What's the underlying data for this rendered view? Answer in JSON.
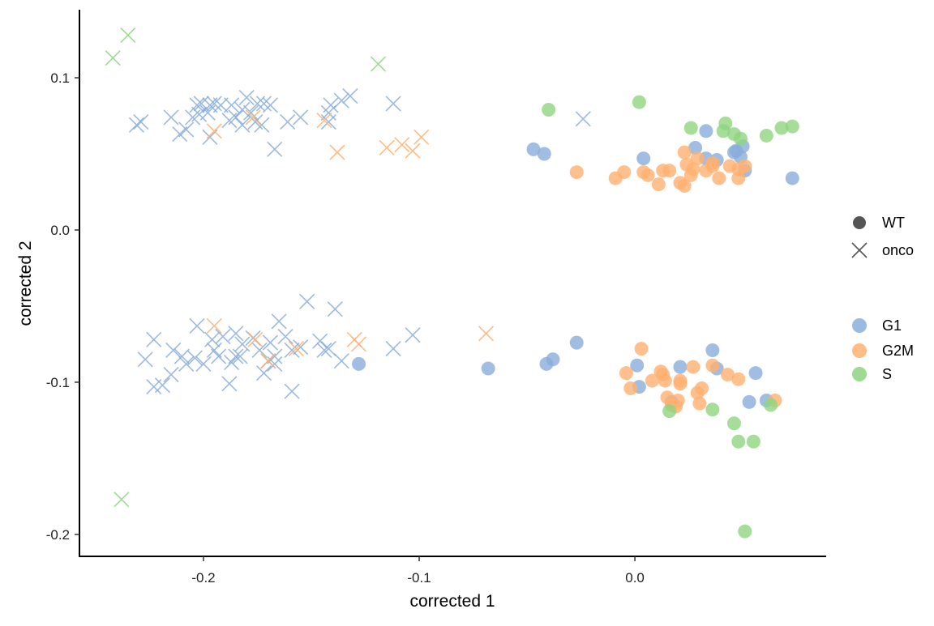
{
  "chart_data": {
    "type": "scatter",
    "xlabel": "corrected 1",
    "ylabel": "corrected 2",
    "xlim": [
      -0.2575,
      0.0883
    ],
    "ylim": [
      -0.2144,
      0.1447
    ],
    "x_ticks": [
      {
        "value": -0.2,
        "label": "-0.2"
      },
      {
        "value": -0.1,
        "label": "-0.1"
      },
      {
        "value": 0.0,
        "label": "0.0"
      }
    ],
    "y_ticks": [
      {
        "value": 0.1,
        "label": "0.1"
      },
      {
        "value": 0.0,
        "label": "0.0"
      },
      {
        "value": -0.1,
        "label": "-0.1"
      },
      {
        "value": -0.2,
        "label": "-0.2"
      }
    ],
    "grid": false,
    "legend_position": "right",
    "shape_legend": [
      {
        "name": "WT",
        "shape": "circle"
      },
      {
        "name": "onco",
        "shape": "cross"
      }
    ],
    "color_legend": [
      {
        "name": "G1",
        "color": "#8aaedb"
      },
      {
        "name": "G2M",
        "color": "#ffb070"
      },
      {
        "name": "S",
        "color": "#8ed480"
      }
    ],
    "series": [
      {
        "shape": "cross",
        "phase": "S",
        "points": [
          [
            -0.242,
            0.113
          ],
          [
            -0.235,
            0.128
          ],
          [
            -0.119,
            0.109
          ],
          [
            -0.238,
            -0.177
          ]
        ]
      },
      {
        "shape": "cross",
        "phase": "G1",
        "points": [
          [
            -0.231,
            0.069
          ],
          [
            -0.229,
            0.071
          ],
          [
            -0.215,
            0.074
          ],
          [
            -0.211,
            0.063
          ],
          [
            -0.208,
            0.066
          ],
          [
            -0.205,
            0.074
          ],
          [
            -0.203,
            0.082
          ],
          [
            -0.201,
            0.083
          ],
          [
            -0.198,
            0.077
          ],
          [
            -0.197,
            0.082
          ],
          [
            -0.195,
            0.083
          ],
          [
            -0.192,
            0.082
          ],
          [
            -0.187,
            0.082
          ],
          [
            -0.185,
            0.074
          ],
          [
            -0.182,
            0.079
          ],
          [
            -0.18,
            0.087
          ],
          [
            -0.178,
            0.077
          ],
          [
            -0.175,
            0.083
          ],
          [
            -0.172,
            0.083
          ],
          [
            -0.169,
            0.082
          ],
          [
            -0.173,
            0.069
          ],
          [
            -0.167,
            0.053
          ],
          [
            -0.161,
            0.071
          ],
          [
            -0.155,
            0.074
          ],
          [
            -0.142,
            0.077
          ],
          [
            -0.141,
            0.082
          ],
          [
            -0.136,
            0.085
          ],
          [
            -0.132,
            0.088
          ],
          [
            -0.112,
            0.083
          ],
          [
            -0.024,
            0.073
          ],
          [
            -0.197,
            0.061
          ],
          [
            -0.182,
            0.069
          ],
          [
            -0.202,
            0.076
          ],
          [
            -0.188,
            0.072
          ],
          [
            -0.176,
            0.071
          ],
          [
            -0.142,
            0.071
          ],
          [
            -0.227,
            -0.085
          ],
          [
            -0.223,
            -0.072
          ],
          [
            -0.223,
            -0.103
          ],
          [
            -0.219,
            -0.102
          ],
          [
            -0.215,
            -0.095
          ],
          [
            -0.214,
            -0.079
          ],
          [
            -0.21,
            -0.083
          ],
          [
            -0.208,
            -0.088
          ],
          [
            -0.204,
            -0.084
          ],
          [
            -0.203,
            -0.063
          ],
          [
            -0.2,
            -0.088
          ],
          [
            -0.196,
            -0.072
          ],
          [
            -0.195,
            -0.079
          ],
          [
            -0.193,
            -0.083
          ],
          [
            -0.191,
            -0.07
          ],
          [
            -0.187,
            -0.087
          ],
          [
            -0.185,
            -0.083
          ],
          [
            -0.185,
            -0.068
          ],
          [
            -0.183,
            -0.083
          ],
          [
            -0.182,
            -0.075
          ],
          [
            -0.177,
            -0.071
          ],
          [
            -0.174,
            -0.079
          ],
          [
            -0.172,
            -0.094
          ],
          [
            -0.17,
            -0.086
          ],
          [
            -0.169,
            -0.074
          ],
          [
            -0.167,
            -0.083
          ],
          [
            -0.165,
            -0.06
          ],
          [
            -0.162,
            -0.07
          ],
          [
            -0.159,
            -0.079
          ],
          [
            -0.155,
            -0.077
          ],
          [
            -0.152,
            -0.047
          ],
          [
            -0.146,
            -0.073
          ],
          [
            -0.144,
            -0.079
          ],
          [
            -0.142,
            -0.078
          ],
          [
            -0.139,
            -0.052
          ],
          [
            -0.136,
            -0.086
          ],
          [
            -0.112,
            -0.078
          ],
          [
            -0.103,
            -0.069
          ],
          [
            -0.159,
            -0.106
          ],
          [
            -0.188,
            -0.101
          ],
          [
            -0.167,
            -0.088
          ]
        ]
      },
      {
        "shape": "cross",
        "phase": "G2M",
        "points": [
          [
            -0.195,
            0.065
          ],
          [
            -0.177,
            0.074
          ],
          [
            -0.144,
            0.072
          ],
          [
            -0.138,
            0.051
          ],
          [
            -0.115,
            0.054
          ],
          [
            -0.108,
            0.056
          ],
          [
            -0.103,
            0.052
          ],
          [
            -0.099,
            0.061
          ],
          [
            -0.195,
            -0.063
          ],
          [
            -0.17,
            -0.086
          ],
          [
            -0.157,
            -0.078
          ],
          [
            -0.13,
            -0.072
          ],
          [
            -0.128,
            -0.075
          ],
          [
            -0.069,
            -0.068
          ],
          [
            -0.176,
            -0.072
          ]
        ]
      },
      {
        "shape": "circle",
        "phase": "G1",
        "points": [
          [
            -0.047,
            0.053
          ],
          [
            -0.042,
            0.05
          ],
          [
            0.004,
            0.047
          ],
          [
            0.033,
            0.065
          ],
          [
            0.028,
            0.054
          ],
          [
            0.038,
            0.046
          ],
          [
            0.047,
            0.052
          ],
          [
            0.05,
            0.055
          ],
          [
            0.049,
            0.048
          ],
          [
            0.051,
            0.039
          ],
          [
            0.073,
            0.034
          ],
          [
            0.033,
            0.047
          ],
          [
            0.046,
            0.051
          ],
          [
            -0.128,
            -0.088
          ],
          [
            -0.068,
            -0.091
          ],
          [
            -0.041,
            -0.088
          ],
          [
            -0.038,
            -0.085
          ],
          [
            -0.027,
            -0.074
          ],
          [
            0.001,
            -0.089
          ],
          [
            0.002,
            -0.103
          ],
          [
            0.021,
            -0.09
          ],
          [
            0.017,
            -0.113
          ],
          [
            0.036,
            -0.079
          ],
          [
            0.038,
            -0.091
          ],
          [
            0.056,
            -0.094
          ],
          [
            0.061,
            -0.112
          ],
          [
            0.053,
            -0.113
          ]
        ]
      },
      {
        "shape": "circle",
        "phase": "G2M",
        "points": [
          [
            -0.027,
            0.038
          ],
          [
            -0.009,
            0.034
          ],
          [
            -0.005,
            0.038
          ],
          [
            0.004,
            0.038
          ],
          [
            0.006,
            0.036
          ],
          [
            0.011,
            0.03
          ],
          [
            0.013,
            0.039
          ],
          [
            0.016,
            0.039
          ],
          [
            0.023,
            0.051
          ],
          [
            0.024,
            0.043
          ],
          [
            0.026,
            0.036
          ],
          [
            0.027,
            0.04
          ],
          [
            0.021,
            0.031
          ],
          [
            0.023,
            0.029
          ],
          [
            0.036,
            0.044
          ],
          [
            0.036,
            0.042
          ],
          [
            0.039,
            0.034
          ],
          [
            0.044,
            0.042
          ],
          [
            0.048,
            0.034
          ],
          [
            0.048,
            0.04
          ],
          [
            0.051,
            0.042
          ],
          [
            0.029,
            0.047
          ],
          [
            0.033,
            0.039
          ],
          [
            -0.004,
            -0.094
          ],
          [
            -0.002,
            -0.104
          ],
          [
            0.003,
            -0.078
          ],
          [
            0.008,
            -0.099
          ],
          [
            0.012,
            -0.093
          ],
          [
            0.014,
            -0.099
          ],
          [
            0.013,
            -0.095
          ],
          [
            0.015,
            -0.11
          ],
          [
            0.017,
            -0.115
          ],
          [
            0.019,
            -0.116
          ],
          [
            0.02,
            -0.112
          ],
          [
            0.021,
            -0.101
          ],
          [
            0.021,
            -0.099
          ],
          [
            0.027,
            -0.09
          ],
          [
            0.029,
            -0.107
          ],
          [
            0.03,
            -0.114
          ],
          [
            0.031,
            -0.104
          ],
          [
            0.036,
            -0.089
          ],
          [
            0.043,
            -0.095
          ],
          [
            0.048,
            -0.098
          ],
          [
            0.065,
            -0.112
          ]
        ]
      },
      {
        "shape": "circle",
        "phase": "S",
        "points": [
          [
            -0.04,
            0.079
          ],
          [
            0.002,
            0.084
          ],
          [
            0.026,
            0.067
          ],
          [
            0.042,
            0.07
          ],
          [
            0.041,
            0.065
          ],
          [
            0.046,
            0.063
          ],
          [
            0.049,
            0.06
          ],
          [
            0.061,
            0.062
          ],
          [
            0.068,
            0.067
          ],
          [
            0.073,
            0.068
          ],
          [
            0.016,
            -0.119
          ],
          [
            0.036,
            -0.118
          ],
          [
            0.046,
            -0.127
          ],
          [
            0.048,
            -0.139
          ],
          [
            0.055,
            -0.139
          ],
          [
            0.063,
            -0.115
          ],
          [
            0.051,
            -0.198
          ]
        ]
      }
    ]
  }
}
